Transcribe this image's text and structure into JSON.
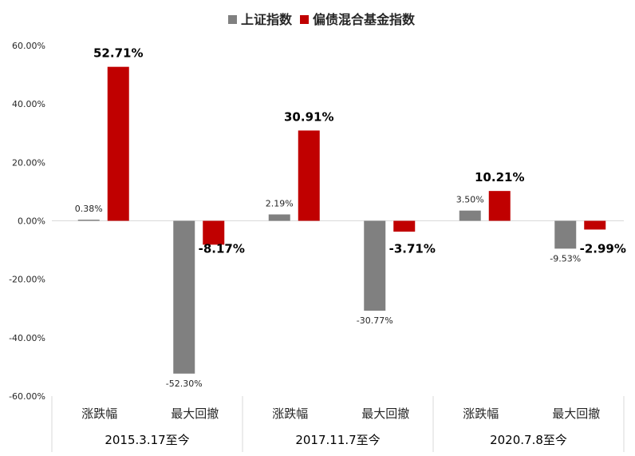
{
  "chart_data": {
    "type": "bar",
    "legend": {
      "placement": "top-center",
      "entries": [
        {
          "name": "上证指数",
          "color": "#808080"
        },
        {
          "name": "偏债混合基金指数",
          "color": "#C00000"
        }
      ]
    },
    "y_axis": {
      "ylim": [
        -60,
        60
      ],
      "ticks": [
        60,
        40,
        20,
        0,
        -20,
        -40,
        -60
      ],
      "tick_labels": [
        "60.00%",
        "40.00%",
        "20.00%",
        "0.00%",
        "-20.00%",
        "-40.00%",
        "-60.00%"
      ],
      "grid": false
    },
    "groups": [
      {
        "period": "2015.3.17至今",
        "categories": [
          {
            "label": "涨跌幅",
            "values": [
              0.38,
              52.71
            ],
            "labels": [
              "0.38%",
              "52.71%"
            ]
          },
          {
            "label": "最大回撤",
            "values": [
              -52.3,
              -8.17
            ],
            "labels": [
              "-52.30%",
              "-8.17%"
            ]
          }
        ]
      },
      {
        "period": "2017.11.7至今",
        "categories": [
          {
            "label": "涨跌幅",
            "values": [
              2.19,
              30.91
            ],
            "labels": [
              "2.19%",
              "30.91%"
            ]
          },
          {
            "label": "最大回撤",
            "values": [
              -30.77,
              -3.71
            ],
            "labels": [
              "-30.77%",
              "-3.71%"
            ]
          }
        ]
      },
      {
        "period": "2020.7.8至今",
        "categories": [
          {
            "label": "涨跌幅",
            "values": [
              3.5,
              10.21
            ],
            "labels": [
              "3.50%",
              "10.21%"
            ]
          },
          {
            "label": "最大回撤",
            "values": [
              -9.53,
              -2.99
            ],
            "labels": [
              "-9.53%",
              "-2.99%"
            ]
          }
        ]
      }
    ]
  }
}
